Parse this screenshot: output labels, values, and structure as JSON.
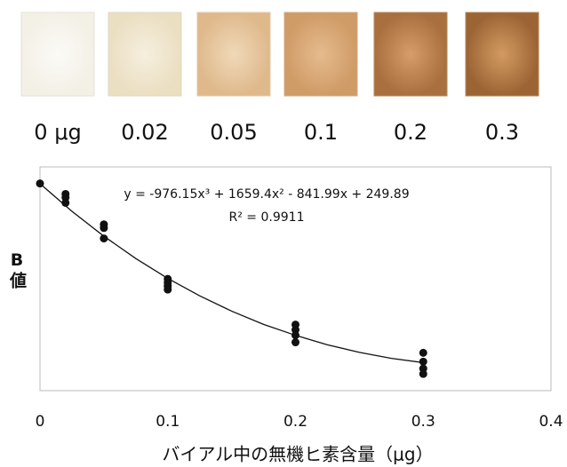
{
  "swatch_labels": [
    "0 μg",
    "0.02",
    "0.05",
    "0.1",
    "0.2",
    "0.3"
  ],
  "chart_data": {
    "type": "scatter",
    "equation": "y = -976.15x³ + 1659.4x² - 841.99x + 249.89",
    "r_squared": "R² = 0.9911",
    "y_label": "B値",
    "x_label": "バイアル中の無機ヒ素含量（μg）",
    "x": [
      0,
      0.02,
      0.02,
      0.02,
      0.05,
      0.05,
      0.05,
      0.1,
      0.1,
      0.1,
      0.1,
      0.2,
      0.2,
      0.2,
      0.2,
      0.3,
      0.3,
      0.3,
      0.3
    ],
    "values": [
      250,
      242.4,
      239.8,
      236,
      220.4,
      217.8,
      210.2,
      180.9,
      178.3,
      175.8,
      173.2,
      147.8,
      144,
      140.1,
      135,
      127.4,
      121,
      116,
      112.1
    ],
    "color": "#111111",
    "trendline": {
      "x": [
        0,
        0.025,
        0.05,
        0.075,
        0.1,
        0.125,
        0.15,
        0.175,
        0.2,
        0.225,
        0.25,
        0.275,
        0.3
      ],
      "values": [
        249.89,
        229.85,
        211.82,
        195.66,
        181.31,
        168.65,
        157.57,
        148.0,
        140.06,
        133.21,
        127.74,
        123.38,
        120.28
      ],
      "color": "#111111"
    },
    "xlim": [
      0,
      0.4
    ],
    "ylim": [
      100,
      262
    ],
    "xticks": [
      0,
      0.1,
      0.2,
      0.3,
      0.4
    ]
  }
}
